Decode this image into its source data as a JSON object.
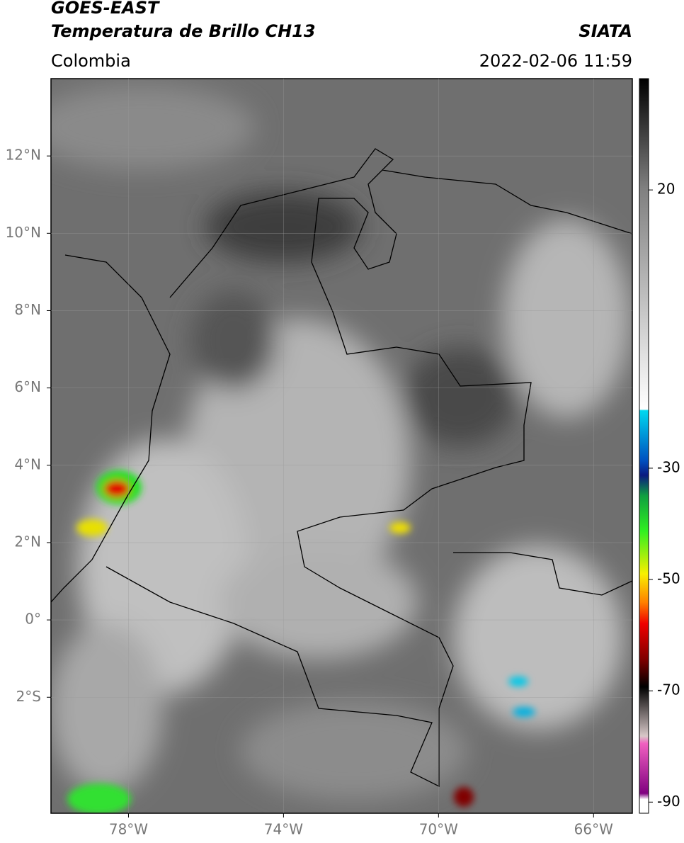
{
  "header": {
    "title": "GOES-EAST",
    "subtitle": "Temperatura de Brillo CH13",
    "source": "SIATA",
    "region": "Colombia",
    "timestamp": "2022-02-06 11:59"
  },
  "map": {
    "lonlim": [
      -80,
      -65
    ],
    "latlim": [
      -5,
      14
    ],
    "lonticks": [
      {
        "value": -78,
        "label": "78°W"
      },
      {
        "value": -74,
        "label": "74°W"
      },
      {
        "value": -70,
        "label": "70°W"
      },
      {
        "value": -66,
        "label": "66°W"
      }
    ],
    "latticks": [
      {
        "value": 12,
        "label": "12°N"
      },
      {
        "value": 10,
        "label": "10°N"
      },
      {
        "value": 8,
        "label": "8°N"
      },
      {
        "value": 6,
        "label": "6°N"
      },
      {
        "value": 4,
        "label": "4°N"
      },
      {
        "value": 2,
        "label": "2°N"
      },
      {
        "value": 0,
        "label": "0°"
      },
      {
        "value": -2,
        "label": "2°S"
      }
    ],
    "grid": true
  },
  "colorbar": {
    "lim": [
      -92,
      40
    ],
    "ticks": [
      20,
      -30,
      -50,
      -70,
      -90
    ]
  }
}
